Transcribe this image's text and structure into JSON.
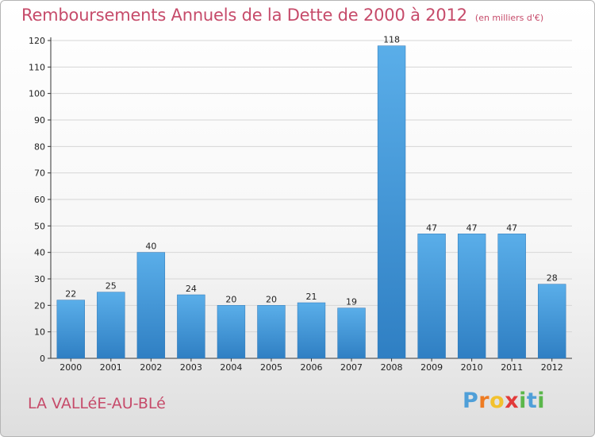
{
  "header": {
    "title": "Remboursements Annuels de la Dette de 2000 à 2012",
    "unit": "(en milliers d'€)"
  },
  "footer": {
    "place_name": "LA VALLéE-AU-BLé"
  },
  "logo": {
    "text": "Proxiti",
    "letters": [
      {
        "ch": "P",
        "color": "#4f9fd8"
      },
      {
        "ch": "r",
        "color": "#ee7b22"
      },
      {
        "ch": "o",
        "color": "#f2c12e"
      },
      {
        "ch": "x",
        "color": "#e23a3a"
      },
      {
        "ch": "i",
        "color": "#5bb74b"
      },
      {
        "ch": "t",
        "color": "#4f9fd8"
      },
      {
        "ch": "i",
        "color": "#5bb74b"
      }
    ]
  },
  "colors": {
    "title": "#c64b6a",
    "bar_top": "#5aaee9",
    "bar_bottom": "#2f7fc3",
    "grid": "#d6d6d6"
  },
  "chart_data": {
    "type": "bar",
    "categories": [
      "2000",
      "2001",
      "2002",
      "2003",
      "2004",
      "2005",
      "2006",
      "2007",
      "2008",
      "2009",
      "2010",
      "2011",
      "2012"
    ],
    "values": [
      22,
      25,
      40,
      24,
      20,
      20,
      21,
      19,
      118,
      47,
      47,
      47,
      28
    ],
    "ylim": [
      0,
      120
    ],
    "yticks": [
      0,
      10,
      20,
      30,
      40,
      50,
      60,
      70,
      80,
      90,
      100,
      110,
      120
    ],
    "grid": true,
    "data_labels": true,
    "title": "Remboursements Annuels de la Dette de 2000 à 2012",
    "xlabel": "",
    "ylabel": ""
  }
}
